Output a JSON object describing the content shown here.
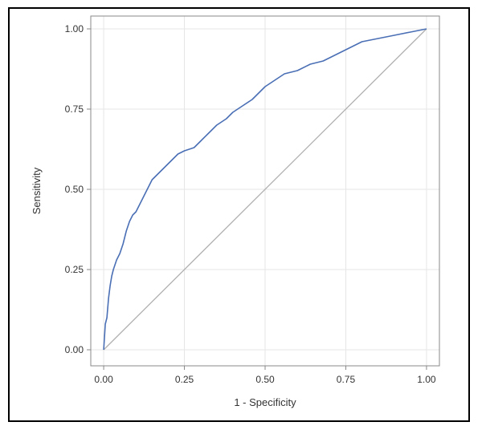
{
  "chart_data": {
    "type": "line",
    "title": "",
    "xlabel": "1 - Specificity",
    "ylabel": "Sensitivity",
    "xlim": [
      -0.04,
      1.04
    ],
    "ylim": [
      -0.05,
      1.04
    ],
    "xticks": [
      0.0,
      0.25,
      0.5,
      0.75,
      1.0
    ],
    "yticks": [
      0.0,
      0.25,
      0.5,
      0.75,
      1.0
    ],
    "xtick_labels": [
      "0.00",
      "0.25",
      "0.50",
      "0.75",
      "1.00"
    ],
    "ytick_labels": [
      "0.00",
      "0.25",
      "0.50",
      "0.75",
      "1.00"
    ],
    "grid": true,
    "series": [
      {
        "color": "#4a6fb5",
        "x": [
          0.0,
          0.005,
          0.01,
          0.015,
          0.02,
          0.025,
          0.03,
          0.04,
          0.05,
          0.06,
          0.07,
          0.08,
          0.09,
          0.1,
          0.11,
          0.12,
          0.13,
          0.14,
          0.15,
          0.17,
          0.19,
          0.21,
          0.23,
          0.25,
          0.28,
          0.3,
          0.33,
          0.35,
          0.38,
          0.4,
          0.43,
          0.46,
          0.5,
          0.53,
          0.56,
          0.6,
          0.64,
          0.68,
          0.72,
          0.76,
          0.8,
          0.85,
          0.9,
          0.95,
          1.0
        ],
        "y": [
          0.0,
          0.08,
          0.1,
          0.16,
          0.2,
          0.23,
          0.25,
          0.28,
          0.3,
          0.33,
          0.37,
          0.4,
          0.42,
          0.43,
          0.45,
          0.47,
          0.49,
          0.51,
          0.53,
          0.55,
          0.57,
          0.59,
          0.61,
          0.62,
          0.63,
          0.65,
          0.68,
          0.7,
          0.72,
          0.74,
          0.76,
          0.78,
          0.82,
          0.84,
          0.86,
          0.87,
          0.89,
          0.9,
          0.92,
          0.94,
          0.96,
          0.97,
          0.98,
          0.99,
          1.0
        ]
      }
    ],
    "reference_line": {
      "x": [
        0.0,
        1.0
      ],
      "y": [
        0.0,
        1.0
      ],
      "color": "#b0b0b0"
    }
  }
}
